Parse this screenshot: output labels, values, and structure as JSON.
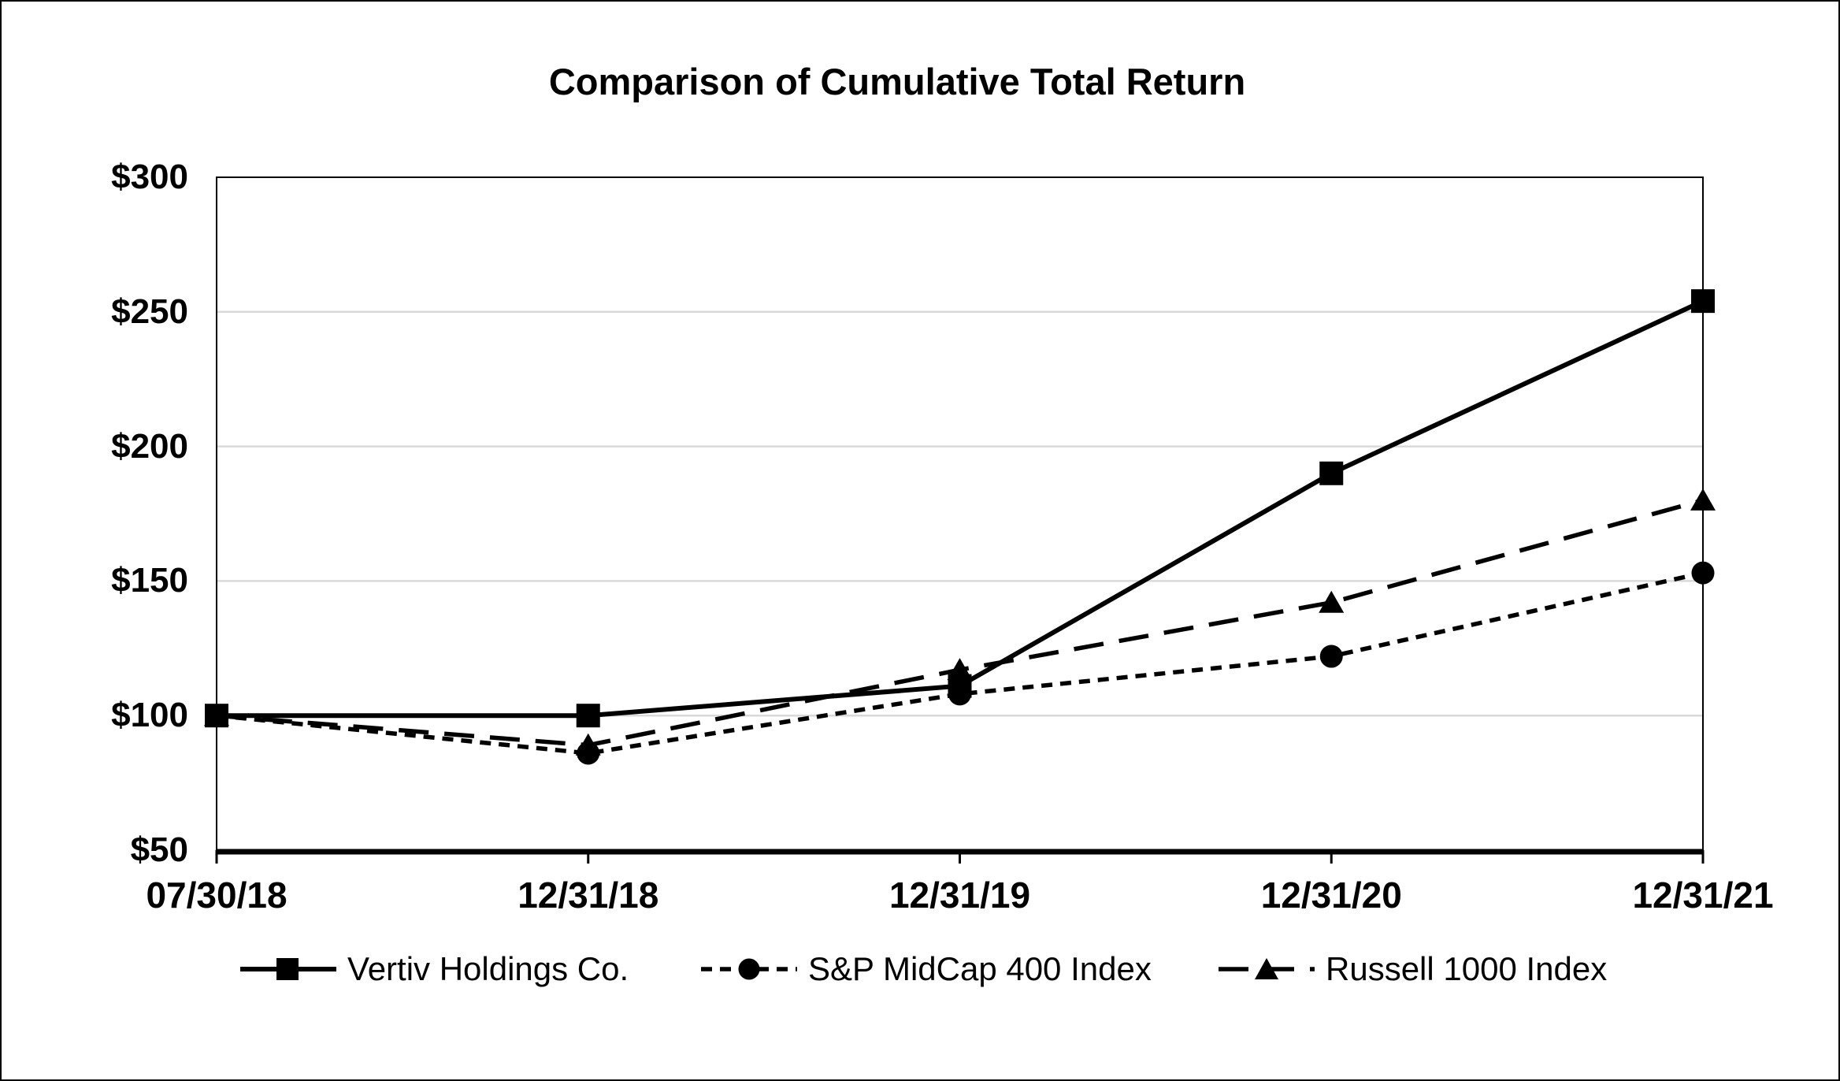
{
  "frame": {
    "background_color": "#ffffff",
    "border_color": "#000000"
  },
  "chart_data": {
    "type": "line",
    "title": "Comparison of Cumulative Total Return",
    "categories": [
      "07/30/18",
      "12/31/18",
      "12/31/19",
      "12/31/20",
      "12/31/21"
    ],
    "series": [
      {
        "name": "Vertiv Holdings Co.",
        "values": [
          100,
          100,
          111,
          190,
          254
        ],
        "line_style": "solid",
        "marker": "square",
        "color": "#000000"
      },
      {
        "name": "S&P MidCap 400 Index",
        "values": [
          100,
          86,
          108,
          122,
          153
        ],
        "line_style": "dotted",
        "marker": "circle",
        "color": "#000000"
      },
      {
        "name": "Russell 1000 Index",
        "values": [
          100,
          89,
          117,
          142,
          180
        ],
        "line_style": "dashed",
        "marker": "triangle",
        "color": "#000000"
      }
    ],
    "xlabel": "",
    "ylabel": "",
    "y_axis": {
      "min": 50,
      "max": 300,
      "step": 50,
      "prefix": "$",
      "tick_labels": [
        "$50",
        "$100",
        "$150",
        "$200",
        "$250",
        "$300"
      ]
    },
    "grid": "horizontal",
    "gridline_color": "#d9d9d9",
    "axis_color": "#000000",
    "legend_position": "bottom"
  }
}
